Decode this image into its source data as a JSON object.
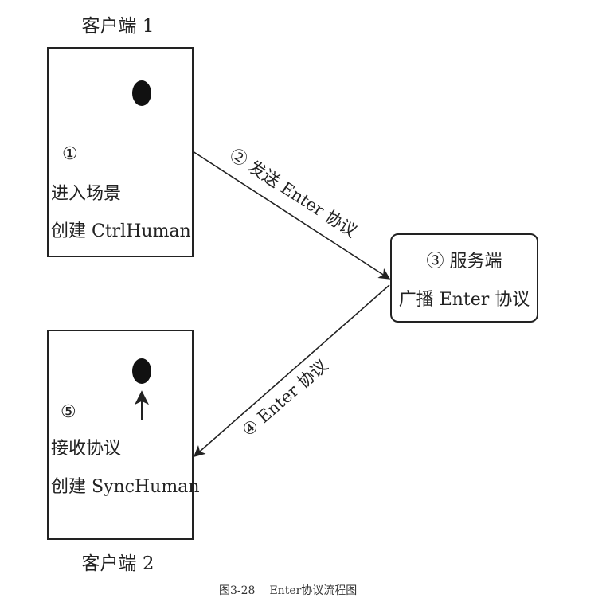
{
  "colors": {
    "ink": "#222222",
    "background": "#ffffff"
  },
  "client1": {
    "title": "客户端 1",
    "step": "①",
    "line1": "进入场景",
    "line2": "创建 CtrlHuman",
    "dot": "black-dot"
  },
  "client2": {
    "title": "客户端 2",
    "step": "⑤",
    "line1": "接收协议",
    "line2": "创建 SyncHuman",
    "dot": "black-dot",
    "pointer": "up-arrow"
  },
  "server": {
    "line1": "③ 服务端",
    "line2": "广播 Enter 协议"
  },
  "arrows": {
    "send": "② 发送 Enter 协议",
    "broadcast": "④ Enter 协议"
  },
  "caption": {
    "figure": "图3-28",
    "text": "Enter协议流程图"
  }
}
